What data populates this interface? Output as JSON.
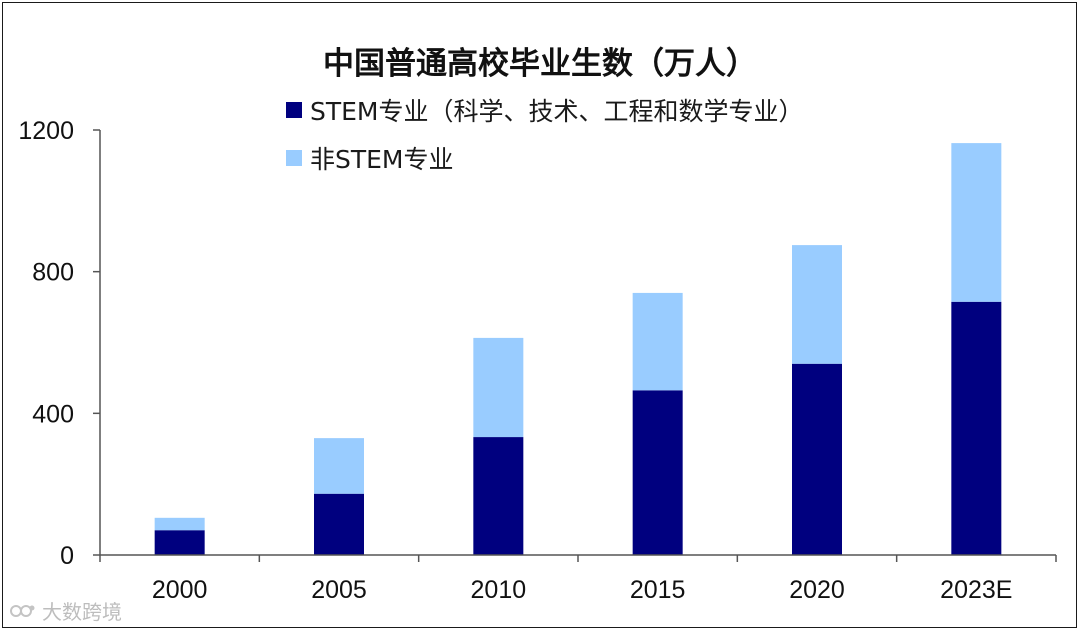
{
  "chart_data": {
    "type": "bar",
    "stacked": true,
    "title": "中国普通高校毕业生数（万人）",
    "categories": [
      "2000",
      "2005",
      "2010",
      "2015",
      "2020",
      "2023E"
    ],
    "series": [
      {
        "name": "STEM专业（科学、技术、工程和数学专业）",
        "values": [
          70,
          173,
          333,
          465,
          540,
          715
        ]
      },
      {
        "name": "非STEM专业",
        "values": [
          35,
          157,
          280,
          275,
          335,
          448
        ]
      }
    ],
    "colors": [
      "#00007F",
      "#99CCFF"
    ],
    "yticks": [
      "0",
      "400",
      "800",
      "1200"
    ],
    "ylim": [
      0,
      1200
    ],
    "grid": false,
    "legend_position": "top-left"
  },
  "watermark": {
    "text": "大数跨境",
    "icon": "logo-icon"
  }
}
